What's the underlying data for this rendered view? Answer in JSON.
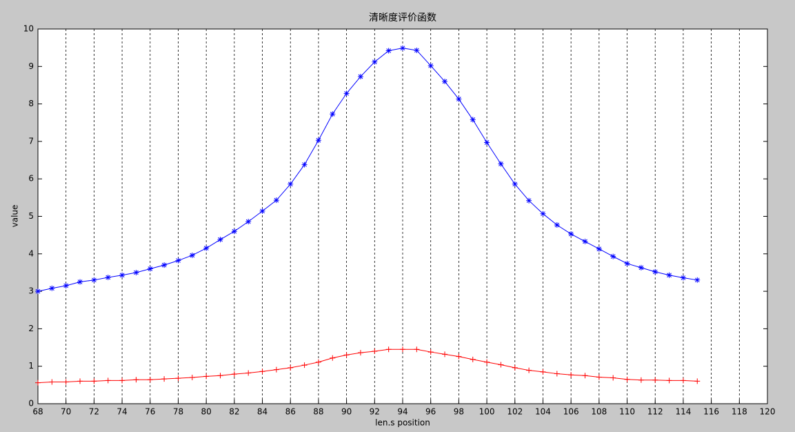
{
  "chart_data": {
    "type": "line",
    "title": "清晰度评价函数",
    "xlabel": "len.s position",
    "ylabel": "value",
    "x": [
      68,
      69,
      70,
      71,
      72,
      73,
      74,
      75,
      76,
      77,
      78,
      79,
      80,
      81,
      82,
      83,
      84,
      85,
      86,
      87,
      88,
      89,
      90,
      91,
      92,
      93,
      94,
      95,
      96,
      97,
      98,
      99,
      100,
      101,
      102,
      103,
      104,
      105,
      106,
      107,
      108,
      109,
      110,
      111,
      112,
      113,
      114,
      115
    ],
    "series": [
      {
        "color": "#0000ff",
        "marker": "*",
        "values": [
          3.0,
          3.08,
          3.15,
          3.25,
          3.3,
          3.37,
          3.43,
          3.5,
          3.6,
          3.7,
          3.82,
          3.96,
          4.15,
          4.38,
          4.6,
          4.86,
          5.14,
          5.43,
          5.86,
          6.38,
          7.03,
          7.73,
          8.28,
          8.73,
          9.12,
          9.42,
          9.49,
          9.43,
          9.02,
          8.6,
          8.13,
          7.58,
          6.97,
          6.4,
          5.86,
          5.42,
          5.07,
          4.77,
          4.53,
          4.33,
          4.13,
          3.93,
          3.74,
          3.63,
          3.52,
          3.43,
          3.36,
          3.3
        ]
      },
      {
        "color": "#ff0000",
        "marker": "+",
        "values": [
          0.56,
          0.58,
          0.58,
          0.6,
          0.6,
          0.62,
          0.62,
          0.64,
          0.64,
          0.66,
          0.68,
          0.7,
          0.73,
          0.75,
          0.79,
          0.82,
          0.86,
          0.91,
          0.96,
          1.03,
          1.11,
          1.22,
          1.3,
          1.36,
          1.4,
          1.45,
          1.45,
          1.45,
          1.38,
          1.32,
          1.26,
          1.18,
          1.11,
          1.04,
          0.96,
          0.89,
          0.85,
          0.8,
          0.77,
          0.75,
          0.71,
          0.69,
          0.65,
          0.63,
          0.63,
          0.62,
          0.62,
          0.6
        ]
      }
    ],
    "xlim": [
      68,
      120
    ],
    "ylim": [
      0,
      10
    ],
    "xticks": [
      68,
      70,
      72,
      74,
      76,
      78,
      80,
      82,
      84,
      86,
      88,
      90,
      92,
      94,
      96,
      98,
      100,
      102,
      104,
      106,
      108,
      110,
      112,
      114,
      116,
      118,
      120
    ],
    "yticks": [
      0,
      1,
      2,
      3,
      4,
      5,
      6,
      7,
      8,
      9,
      10
    ],
    "grid": "x"
  }
}
